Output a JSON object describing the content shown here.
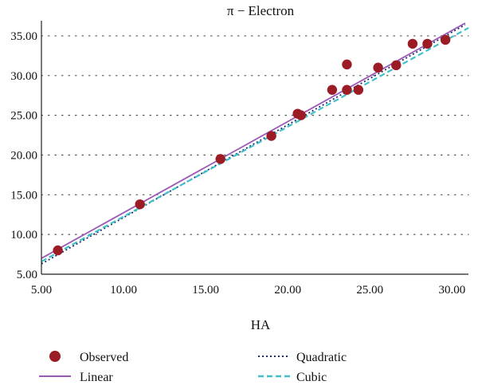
{
  "chart_data": {
    "type": "scatter",
    "title": "π − Electron",
    "xlabel": "HA",
    "ylabel": "",
    "xlim": [
      5,
      31
    ],
    "ylim": [
      5,
      36.5
    ],
    "x_ticks": [
      5,
      10,
      15,
      20,
      25,
      30
    ],
    "y_ticks": [
      5,
      10,
      15,
      20,
      25,
      30,
      35
    ],
    "x_tick_labels": [
      "5.00",
      "10.00",
      "15.00",
      "20.00",
      "25.00",
      "30.00"
    ],
    "y_tick_labels": [
      "5.00",
      "10.00",
      "15.00",
      "20.00",
      "25.00",
      "30.00",
      "35.00"
    ],
    "grid": {
      "horizontal": true,
      "style": "dotted"
    },
    "legend_position": "bottom",
    "observed": {
      "name": "Observed",
      "color": "#9b1c24",
      "points": [
        [
          6.0,
          8.0
        ],
        [
          11.0,
          13.8
        ],
        [
          15.9,
          19.5
        ],
        [
          19.0,
          22.4
        ],
        [
          20.6,
          25.2
        ],
        [
          20.8,
          25.0
        ],
        [
          22.7,
          28.2
        ],
        [
          23.6,
          31.4
        ],
        [
          23.6,
          28.2
        ],
        [
          24.3,
          28.2
        ],
        [
          25.5,
          31.0
        ],
        [
          26.6,
          31.3
        ],
        [
          27.6,
          34.0
        ],
        [
          28.5,
          34.0
        ],
        [
          29.6,
          34.5
        ]
      ]
    },
    "fits": [
      {
        "name": "Linear",
        "color": "#9b59b6",
        "dash": "solid",
        "x": [
          5.0,
          30.8
        ],
        "y": [
          7.0,
          36.6
        ]
      },
      {
        "name": "Quadratic",
        "color": "#1f2a6b",
        "dash": "dotted",
        "x": [
          5.0,
          30.8
        ],
        "y": [
          6.3,
          36.4
        ]
      },
      {
        "name": "Cubic",
        "color": "#3fc1c9",
        "dash": "dashed",
        "x": [
          5.0,
          31.0
        ],
        "y": [
          6.6,
          36.0
        ]
      }
    ]
  },
  "legend": {
    "observed": "Observed",
    "linear": "Linear",
    "quadratic": "Quadratic",
    "cubic": "Cubic"
  }
}
